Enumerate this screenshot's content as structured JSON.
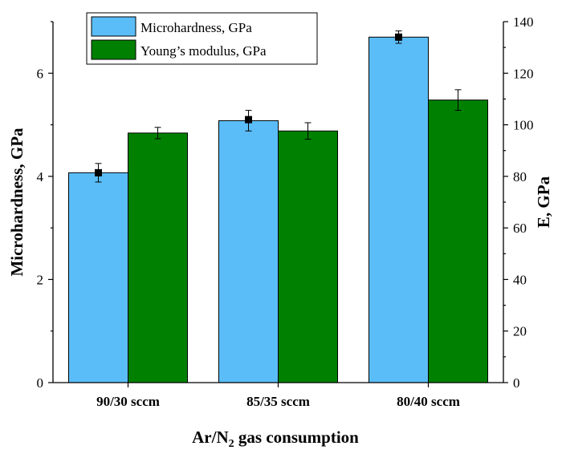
{
  "chart_data": {
    "type": "bar",
    "categories": [
      "90/30 sccm",
      "85/35 sccm",
      "80/40 sccm"
    ],
    "series": [
      {
        "name": "Microhardness, GPa",
        "axis": "left",
        "color": "#5BBDF8",
        "values": [
          4.07,
          5.08,
          6.7
        ],
        "errors": [
          0.18,
          0.2,
          0.12
        ],
        "marker_values": [
          4.07,
          5.1,
          6.7
        ]
      },
      {
        "name": "Young’s modulus, GPa",
        "axis": "right",
        "color": "#008000",
        "values": [
          96.8,
          97.6,
          109.6
        ],
        "errors": [
          2.2,
          3.2,
          4.0
        ]
      }
    ],
    "xlabel": "Ar/N",
    "xlabel_sub": "2",
    "xlabel_tail": " gas consumption",
    "ylabel": "Microhardness, GPa",
    "ylabel_right": "E, GPa",
    "ylim": [
      0,
      7
    ],
    "ylim_right": [
      0,
      140
    ],
    "yticks": [
      0,
      2,
      4,
      6
    ],
    "yticks_right": [
      0,
      20,
      40,
      60,
      80,
      100,
      120,
      140
    ],
    "grid": false,
    "legend_position": "top-left"
  }
}
